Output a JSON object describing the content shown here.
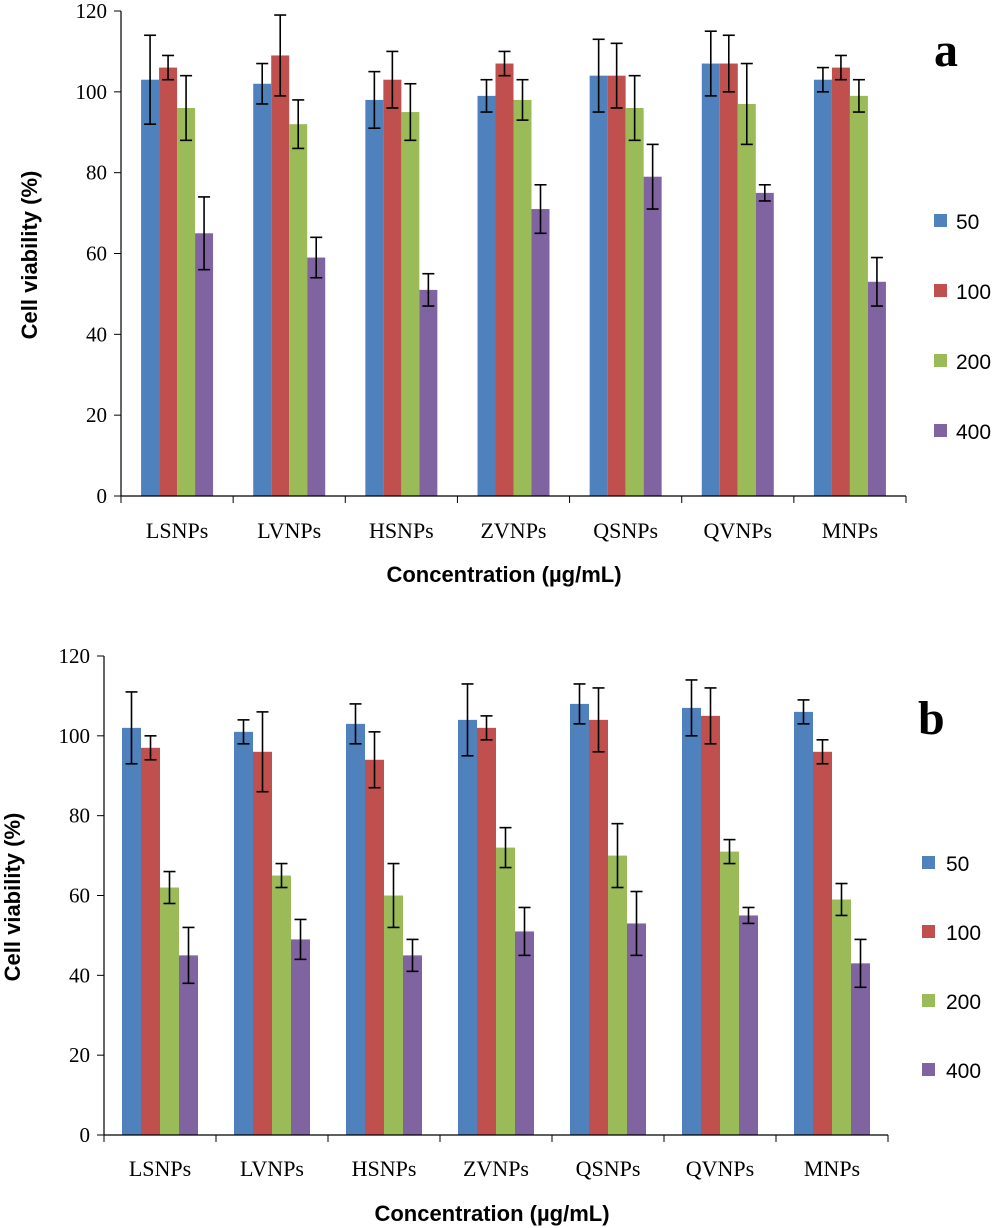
{
  "chart_data": [
    {
      "type": "bar",
      "panel_label": "a",
      "categories": [
        "LSNPs",
        "LVNPs",
        "HSNPs",
        "ZVNPs",
        "QSNPs",
        "QVNPs",
        "MNPs"
      ],
      "series": [
        {
          "name": "50",
          "color": "#4F81BD",
          "values": [
            103,
            102,
            98,
            99,
            104,
            107,
            103
          ],
          "errors": [
            11,
            5,
            7,
            4,
            9,
            8,
            3
          ]
        },
        {
          "name": "100",
          "color": "#C0504D",
          "values": [
            106,
            109,
            103,
            107,
            104,
            107,
            106
          ],
          "errors": [
            3,
            10,
            7,
            3,
            8,
            7,
            3
          ]
        },
        {
          "name": "200",
          "color": "#9BBB59",
          "values": [
            96,
            92,
            95,
            98,
            96,
            97,
            99
          ],
          "errors": [
            8,
            6,
            7,
            5,
            8,
            10,
            4
          ]
        },
        {
          "name": "400",
          "color": "#8064A2",
          "values": [
            65,
            59,
            51,
            71,
            79,
            75,
            53
          ],
          "errors": [
            9,
            5,
            4,
            6,
            8,
            2,
            6
          ]
        }
      ],
      "xlabel": "Concentration (µg/mL)",
      "ylabel": "Cell viability (%)",
      "ylim": [
        0,
        120
      ],
      "yticks": [
        "0",
        "20",
        "40",
        "60",
        "80",
        "100",
        "120"
      ],
      "legend": "right"
    },
    {
      "type": "bar",
      "panel_label": "b",
      "categories": [
        "LSNPs",
        "LVNPs",
        "HSNPs",
        "ZVNPs",
        "QSNPs",
        "QVNPs",
        "MNPs"
      ],
      "series": [
        {
          "name": "50",
          "color": "#4F81BD",
          "values": [
            102,
            101,
            103,
            104,
            108,
            107,
            106
          ],
          "errors": [
            9,
            3,
            5,
            9,
            5,
            7,
            3
          ]
        },
        {
          "name": "100",
          "color": "#C0504D",
          "values": [
            97,
            96,
            94,
            102,
            104,
            105,
            96
          ],
          "errors": [
            3,
            10,
            7,
            3,
            8,
            7,
            3
          ]
        },
        {
          "name": "200",
          "color": "#9BBB59",
          "values": [
            62,
            65,
            60,
            72,
            70,
            71,
            59
          ],
          "errors": [
            4,
            3,
            8,
            5,
            8,
            3,
            4
          ]
        },
        {
          "name": "400",
          "color": "#8064A2",
          "values": [
            45,
            49,
            45,
            51,
            53,
            55,
            43
          ],
          "errors": [
            7,
            5,
            4,
            6,
            8,
            2,
            6
          ]
        }
      ],
      "xlabel": "Concentration (µg/mL)",
      "ylabel": "Cell viability (%)",
      "ylim": [
        0,
        120
      ],
      "yticks": [
        "0",
        "20",
        "40",
        "60",
        "80",
        "100",
        "120"
      ],
      "legend": "right"
    }
  ]
}
